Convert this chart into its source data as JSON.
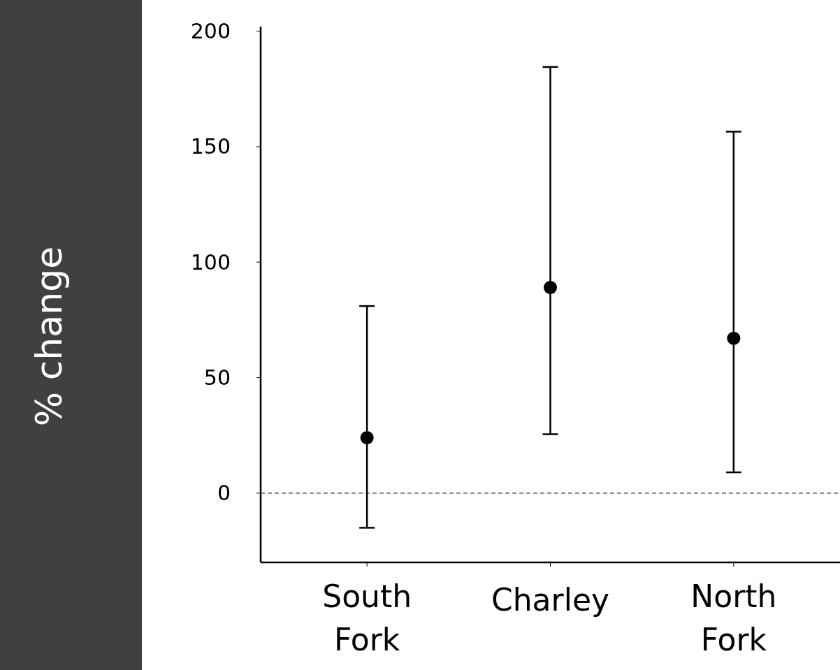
{
  "chart_data": {
    "type": "scatter",
    "ylabel": "% change",
    "categories": [
      "South Fork",
      "Charley",
      "North Fork"
    ],
    "series": [
      {
        "color": "#000000",
        "values": [
          24,
          89,
          67
        ],
        "errors": [
          [
            -15,
            81
          ],
          [
            25.5,
            184.5
          ],
          [
            9,
            156.5
          ]
        ]
      }
    ],
    "ylim": [
      -30,
      202
    ],
    "yticks": [
      0,
      50,
      100,
      150,
      200
    ],
    "ref_lines": [
      {
        "axis": "y",
        "value": 0,
        "line_style": "dashed",
        "color": "#333333"
      }
    ],
    "marker": "circle",
    "grid": false
  }
}
